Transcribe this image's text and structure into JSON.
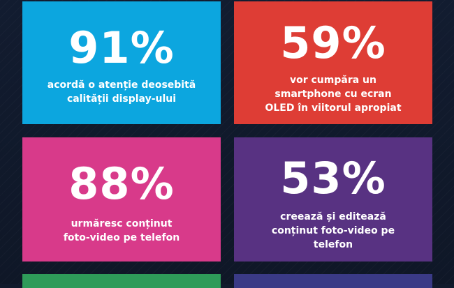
{
  "stats": [
    {
      "value": "91%",
      "caption": "acordă o atenție deosebită calității display-ului",
      "color": "#0ca6df"
    },
    {
      "value": "59%",
      "caption": "vor cumpăra un smartphone cu ecran OLED în viitorul apropiat",
      "color": "#de3d35"
    },
    {
      "value": "88%",
      "caption": "urmăresc conținut foto-video pe telefon",
      "color": "#d83a8a"
    },
    {
      "value": "53%",
      "caption": "creează și editează conținut foto-video pe telefon",
      "color": "#583282"
    }
  ],
  "partial_cards": [
    {
      "color": "#2e9b59"
    },
    {
      "color": "#3a3a86"
    }
  ],
  "background_color": "#111a2c"
}
